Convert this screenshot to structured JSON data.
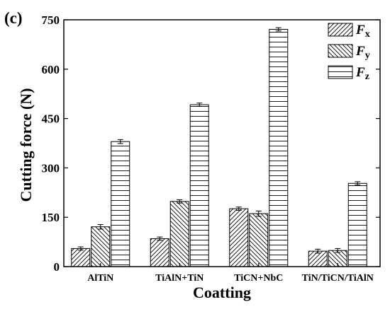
{
  "panel_label": "(c)",
  "chart_data": {
    "type": "bar",
    "title": "",
    "xlabel": "Coatting",
    "ylabel": "Cutting force (N)",
    "ylim": [
      0,
      750
    ],
    "yticks": [
      0,
      150,
      300,
      450,
      600,
      750
    ],
    "grid": false,
    "legend_position": "top-right",
    "categories": [
      "AlTiN",
      "TiAlN+TiN",
      "TiCN+NbC",
      "TiN/TiCN/TiAlN"
    ],
    "series": [
      {
        "name_base": "F",
        "name_sub": "x",
        "pattern": "hatch-forward",
        "values": [
          55,
          85,
          176,
          47
        ],
        "errors": [
          5,
          5,
          5,
          6
        ]
      },
      {
        "name_base": "F",
        "name_sub": "y",
        "pattern": "hatch-back",
        "values": [
          121,
          198,
          161,
          49
        ],
        "errors": [
          7,
          5,
          8,
          6
        ]
      },
      {
        "name_base": "F",
        "name_sub": "z",
        "pattern": "horizontal",
        "values": [
          380,
          492,
          721,
          253
        ],
        "errors": [
          6,
          5,
          5,
          5
        ]
      }
    ]
  }
}
